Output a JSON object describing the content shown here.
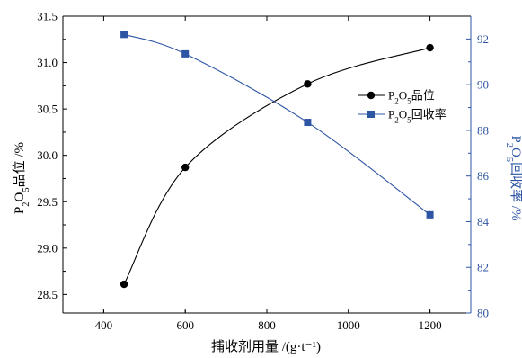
{
  "chart_data": {
    "type": "line",
    "xlabel": "捕收剂用量 /(g·t⁻¹)",
    "x_axis": {
      "range": [
        300,
        1300
      ],
      "ticks": [
        400,
        600,
        800,
        1000,
        1200
      ]
    },
    "y_left": {
      "label_parts": [
        "P",
        "2",
        "O",
        "5",
        "品位 /%"
      ],
      "range": [
        28.3,
        31.5
      ],
      "ticks": [
        28.5,
        29.0,
        29.5,
        30.0,
        30.5,
        31.0,
        31.5
      ],
      "tick_labels": [
        "28.5",
        "29.0",
        "29.5",
        "30.0",
        "30.5",
        "31.0",
        "31.5"
      ]
    },
    "y_right": {
      "label_parts": [
        "P",
        "2",
        "O",
        "5",
        "回收率 /%"
      ],
      "range": [
        80,
        93
      ],
      "ticks": [
        80,
        82,
        84,
        86,
        88,
        90,
        92
      ],
      "tick_labels": [
        "80",
        "82",
        "84",
        "86",
        "88",
        "90",
        "92"
      ],
      "color": "#2e55a4"
    },
    "series": [
      {
        "name_parts": [
          "P",
          "2",
          "O",
          "5",
          "品位"
        ],
        "axis": "left",
        "marker": "circle",
        "color": "#000000",
        "x": [
          450,
          600,
          900,
          1200
        ],
        "y": [
          28.61,
          29.87,
          30.77,
          31.16
        ]
      },
      {
        "name_parts": [
          "P",
          "2",
          "O",
          "5",
          "回收率"
        ],
        "axis": "right",
        "marker": "square",
        "color": "#2e55a4",
        "x": [
          450,
          600,
          900,
          1200
        ],
        "y": [
          92.2,
          91.35,
          88.35,
          84.3
        ]
      }
    ],
    "legend_position": "center-right",
    "grid": false
  }
}
